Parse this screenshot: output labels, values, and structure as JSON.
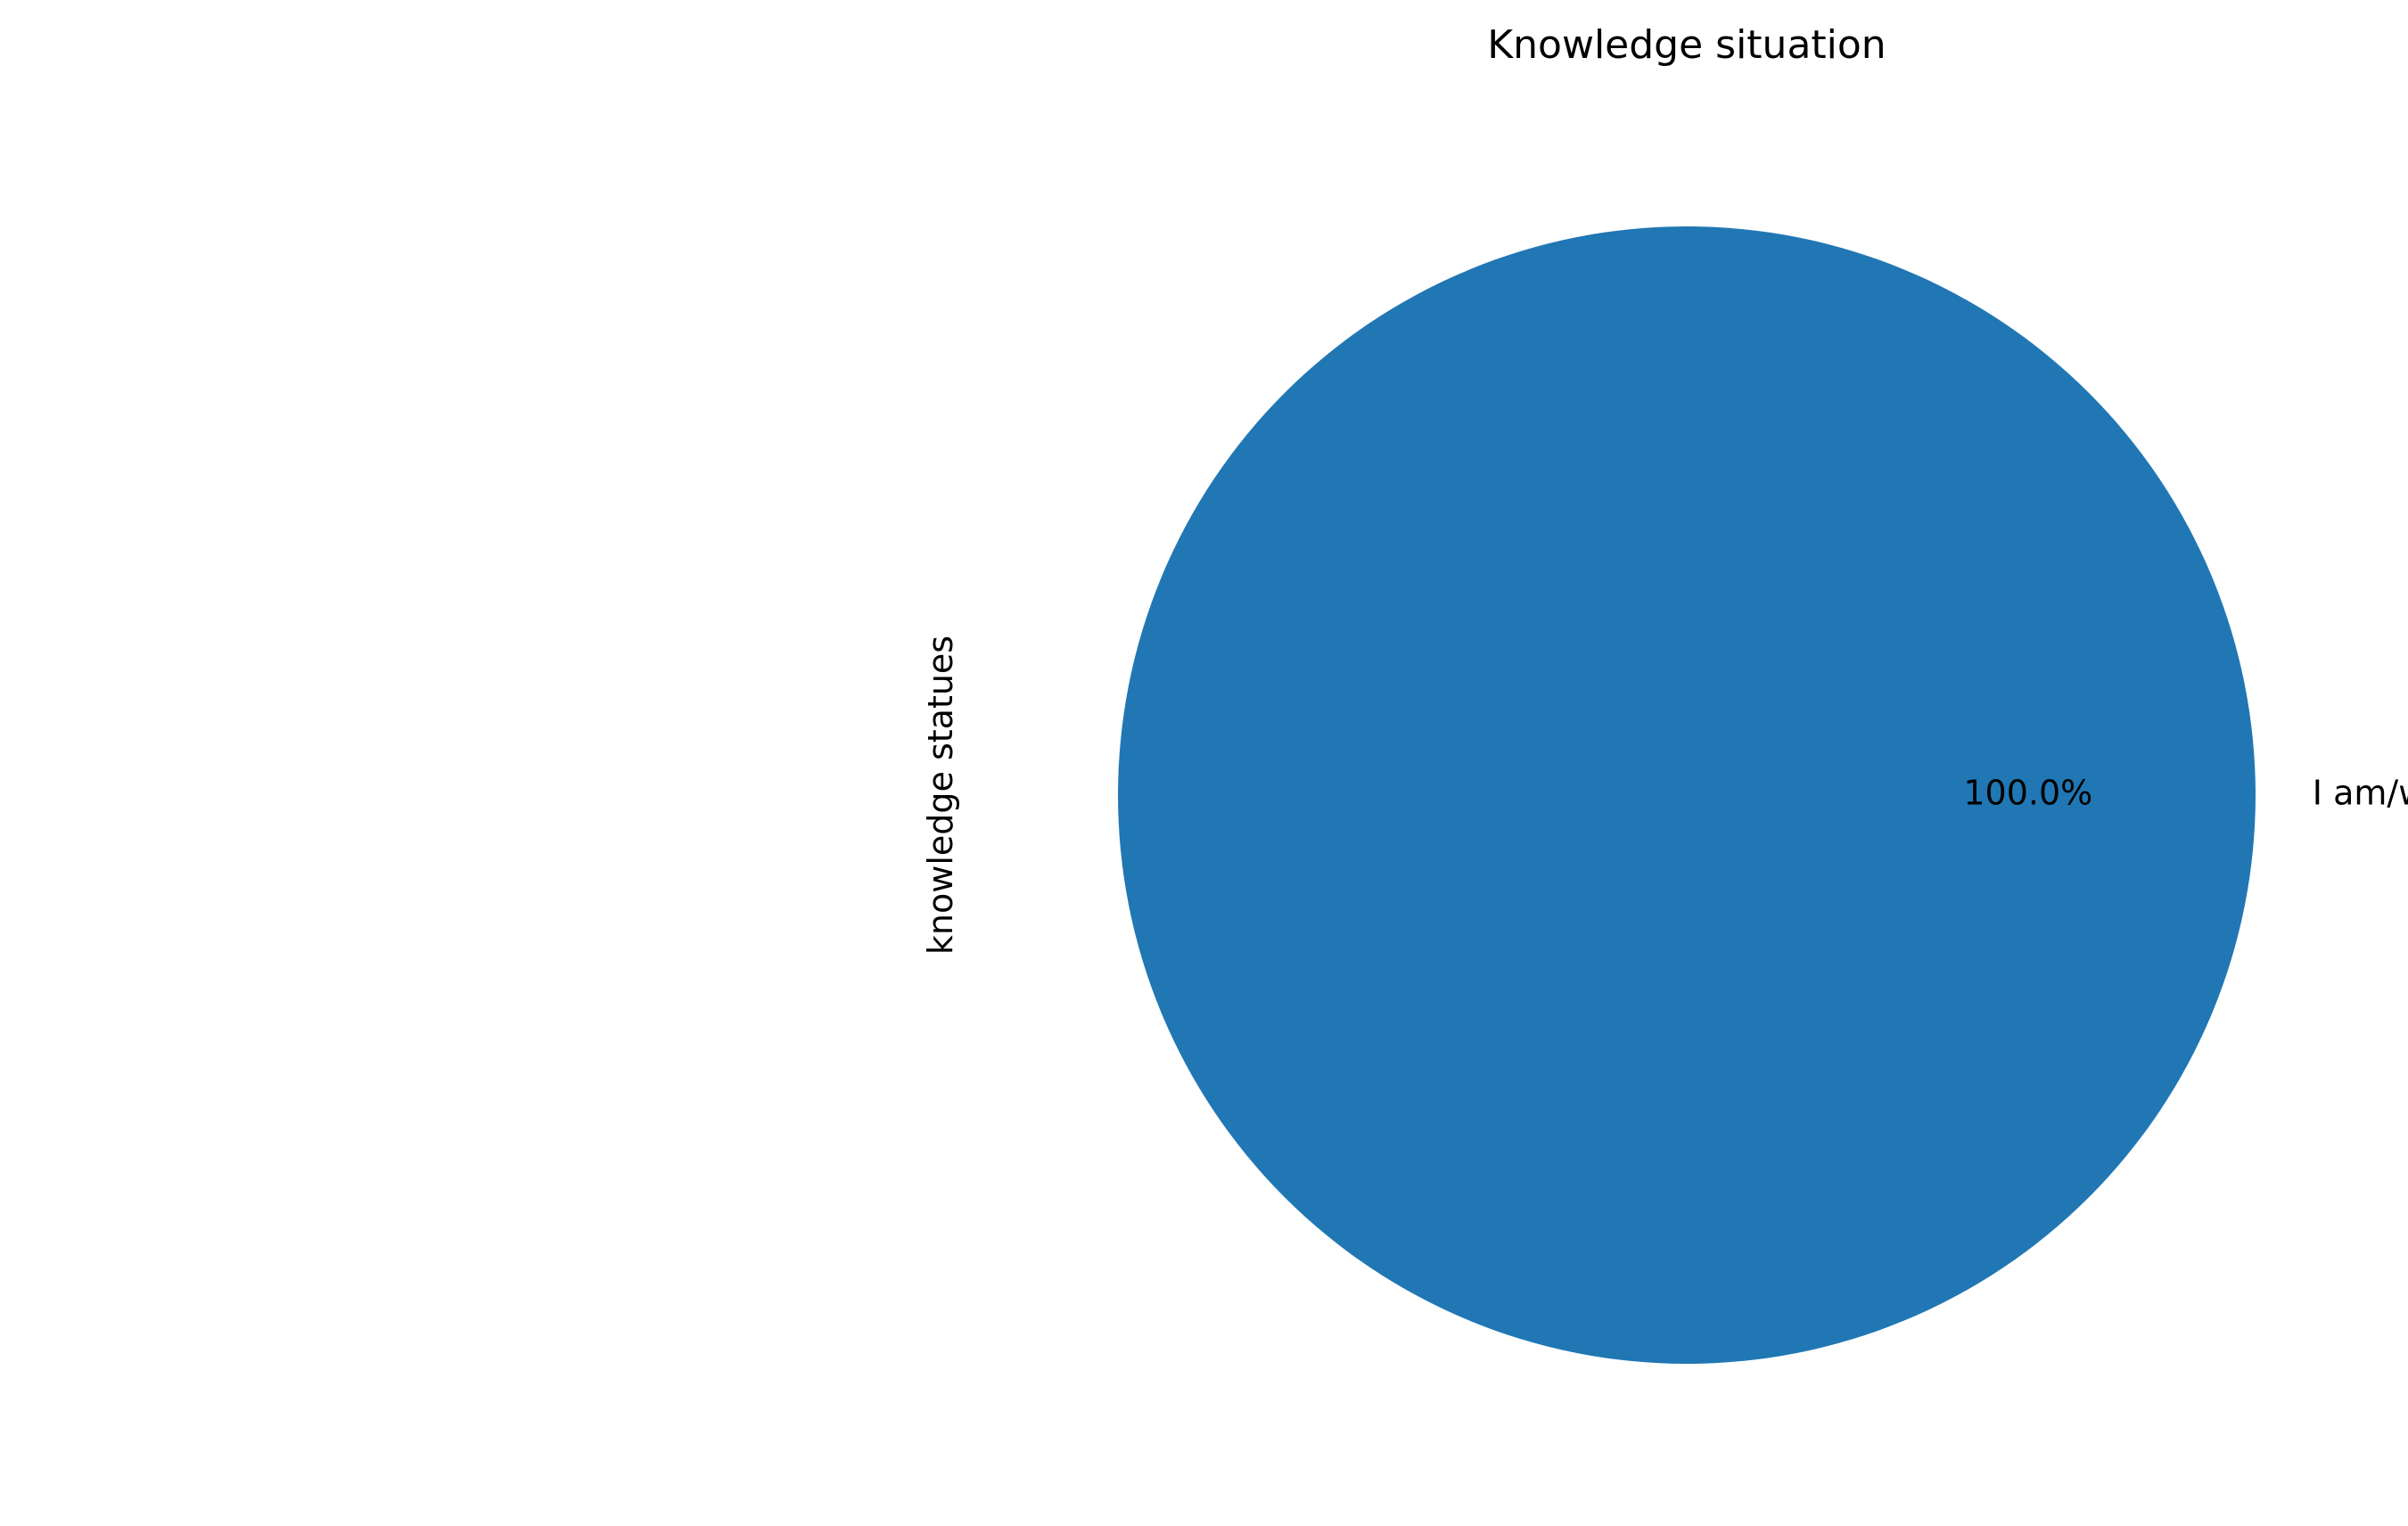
{
  "chart_data": {
    "type": "pie",
    "title": "Knowledge situation",
    "ylabel": "knowledge statues",
    "xlabel": "",
    "slices": [
      {
        "label": "I am/was exposed to those in an undergraduate course",
        "value": 100.0,
        "autopct": "100.0%",
        "color": "#2077b4"
      }
    ],
    "start_angle_deg": 180,
    "legend": "none",
    "grid": false
  }
}
